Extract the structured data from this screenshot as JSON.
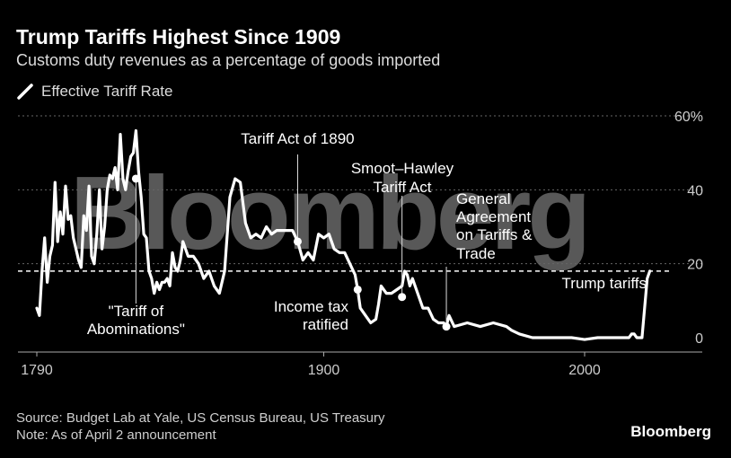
{
  "title": "Trump Tariffs Highest Since 1909",
  "subtitle": "Customs duty revenues as a percentage of goods imported",
  "legend_label": "Effective Tariff Rate",
  "watermark": "Bloomberg",
  "source": "Source: Budget Lab at Yale, US Census Bureau, US Treasury",
  "note": "Note: As of April 2 announcement",
  "brand": "Bloomberg",
  "colors": {
    "background": "#000000",
    "line": "#ffffff",
    "grid": "#666666"
  },
  "chart_data": {
    "type": "line",
    "series": [
      {
        "name": "Effective Tariff Rate",
        "x": [
          1790,
          1791,
          1792,
          1793,
          1794,
          1795,
          1796,
          1797,
          1798,
          1799,
          1800,
          1801,
          1802,
          1803,
          1804,
          1805,
          1806,
          1807,
          1808,
          1809,
          1810,
          1811,
          1812,
          1813,
          1814,
          1815,
          1816,
          1817,
          1818,
          1819,
          1820,
          1821,
          1822,
          1823,
          1824,
          1825,
          1826,
          1827,
          1828,
          1829,
          1830,
          1831,
          1832,
          1833,
          1834,
          1835,
          1836,
          1837,
          1838,
          1839,
          1840,
          1841,
          1842,
          1843,
          1844,
          1845,
          1846,
          1848,
          1850,
          1852,
          1854,
          1856,
          1858,
          1860,
          1862,
          1864,
          1866,
          1868,
          1870,
          1872,
          1874,
          1876,
          1878,
          1880,
          1882,
          1884,
          1886,
          1888,
          1890,
          1892,
          1894,
          1896,
          1898,
          1900,
          1902,
          1904,
          1906,
          1908,
          1910,
          1912,
          1913,
          1914,
          1916,
          1918,
          1920,
          1921,
          1922,
          1924,
          1926,
          1928,
          1930,
          1931,
          1932,
          1933,
          1934,
          1936,
          1938,
          1940,
          1942,
          1944,
          1946,
          1947,
          1948,
          1950,
          1955,
          1960,
          1965,
          1970,
          1972,
          1975,
          1980,
          1985,
          1990,
          1995,
          2000,
          2005,
          2010,
          2015,
          2017,
          2018,
          2019,
          2020,
          2022,
          2024,
          2025
        ],
        "values": [
          8,
          6,
          18,
          27,
          15,
          22,
          25,
          42,
          26,
          34,
          28,
          41,
          32,
          33,
          27,
          24,
          21,
          19,
          33,
          29,
          41,
          22,
          20,
          28,
          40,
          24,
          30,
          40,
          44,
          43,
          46,
          40,
          55,
          43,
          40,
          45,
          49,
          50,
          56,
          45,
          38,
          28,
          27,
          18,
          16,
          12,
          15,
          13,
          15,
          15,
          16,
          14,
          23,
          19,
          18,
          21,
          26,
          22,
          22,
          20,
          16,
          18,
          14,
          12,
          18,
          38,
          43,
          42,
          31,
          27,
          28,
          27,
          30,
          28,
          29,
          29,
          29,
          29,
          26,
          21,
          23,
          21,
          28,
          27,
          28,
          24,
          23,
          23,
          20,
          17,
          13,
          8,
          6,
          4,
          5,
          9,
          14,
          12,
          12,
          13,
          14,
          18,
          17,
          14,
          16,
          12,
          8,
          8,
          5,
          4,
          4,
          3,
          6,
          3,
          4,
          3,
          4,
          3,
          2,
          1,
          0,
          0,
          0,
          0,
          -0.5,
          0,
          0,
          0,
          0,
          1,
          1,
          0,
          0,
          16,
          18
        ]
      }
    ],
    "xlim": [
      1786,
      2036
    ],
    "ylim": [
      -2,
      60
    ],
    "x_ticks": [
      1790,
      1900,
      2000
    ],
    "x_tick_labels": [
      "1790",
      "1900",
      "2000"
    ],
    "y_ticks": [
      0,
      20,
      40,
      60
    ],
    "y_tick_labels": [
      "0",
      "20",
      "40",
      "60%"
    ],
    "reference_line": {
      "y": 18,
      "style": "dashed"
    },
    "grid": "horizontal-dotted",
    "annotations": [
      {
        "name": "tariff-of-abominations",
        "label": "\"Tariff of Abominations\"",
        "x": 1828,
        "y": 43,
        "label_pos": "below"
      },
      {
        "name": "tariff-act-1890",
        "label": "Tariff Act of 1890",
        "x": 1890,
        "y": 26,
        "label_pos": "above"
      },
      {
        "name": "income-tax",
        "label": "Income tax ratified",
        "x": 1913,
        "y": 13,
        "label_pos": "below"
      },
      {
        "name": "smoot-hawley",
        "label": "Smoot–Hawley Tariff Act",
        "x": 1930,
        "y": 11,
        "label_pos": "above"
      },
      {
        "name": "gatt",
        "label": "General Agreement on Tariffs & Trade",
        "x": 1947,
        "y": 3,
        "label_pos": "above"
      },
      {
        "name": "trump-tariffs",
        "label": "Trump tariffs",
        "x": 2025,
        "y": 18,
        "label_pos": "left"
      }
    ]
  }
}
